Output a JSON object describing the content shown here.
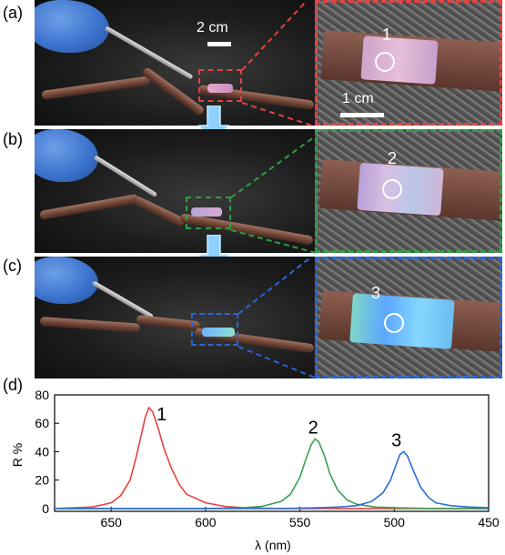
{
  "panels": {
    "a": {
      "label": "(a)",
      "inset_number": "1",
      "color": "#e8413f"
    },
    "b": {
      "label": "(b)",
      "inset_number": "2",
      "color": "#2f9e44"
    },
    "c": {
      "label": "(c)",
      "inset_number": "3",
      "color": "#2a65d9"
    },
    "d": {
      "label": "(d)"
    }
  },
  "scale_bars": {
    "main": "2 cm",
    "inset": "1 cm"
  },
  "chart_data": {
    "type": "line",
    "xlabel": "λ (nm)",
    "ylabel": "R %",
    "xlim": [
      680,
      450
    ],
    "ylim": [
      -2,
      80
    ],
    "x_reversed": true,
    "xticks": [
      650,
      600,
      550,
      500,
      450
    ],
    "yticks": [
      0,
      20,
      40,
      60,
      80
    ],
    "series": [
      {
        "name": "1",
        "color": "#e8413f",
        "peak_x": 630,
        "peak_y": 71,
        "width": 10,
        "x": [
          680,
          660,
          650,
          645,
          640,
          637,
          634,
          632,
          630,
          628,
          625,
          622,
          618,
          614,
          610,
          600,
          590,
          580,
          560,
          540,
          520,
          500,
          480,
          450
        ],
        "y": [
          0,
          1,
          4,
          9,
          20,
          35,
          52,
          64,
          71,
          68,
          56,
          42,
          28,
          17,
          10,
          4,
          1.5,
          0.5,
          0,
          0,
          0,
          0,
          0,
          0
        ]
      },
      {
        "name": "2",
        "color": "#3a9f55",
        "peak_x": 542,
        "peak_y": 49,
        "width": 8,
        "x": [
          680,
          600,
          580,
          570,
          560,
          555,
          550,
          547,
          544,
          542,
          540,
          537,
          534,
          530,
          525,
          520,
          510,
          500,
          480,
          450
        ],
        "y": [
          0,
          0,
          0.5,
          1.5,
          5,
          10,
          22,
          34,
          45,
          49,
          47,
          37,
          24,
          13,
          6,
          3,
          1,
          0.5,
          0,
          0
        ]
      },
      {
        "name": "3",
        "color": "#2a6fd6",
        "peak_x": 495,
        "peak_y": 40,
        "width": 8,
        "x": [
          680,
          560,
          540,
          530,
          520,
          512,
          506,
          502,
          499,
          497,
          495,
          493,
          490,
          486,
          482,
          478,
          470,
          460,
          450
        ],
        "y": [
          0,
          0,
          0.5,
          1,
          2,
          5,
          11,
          20,
          31,
          38,
          40,
          37,
          27,
          15,
          8,
          4,
          2,
          1,
          0.5
        ]
      }
    ]
  }
}
